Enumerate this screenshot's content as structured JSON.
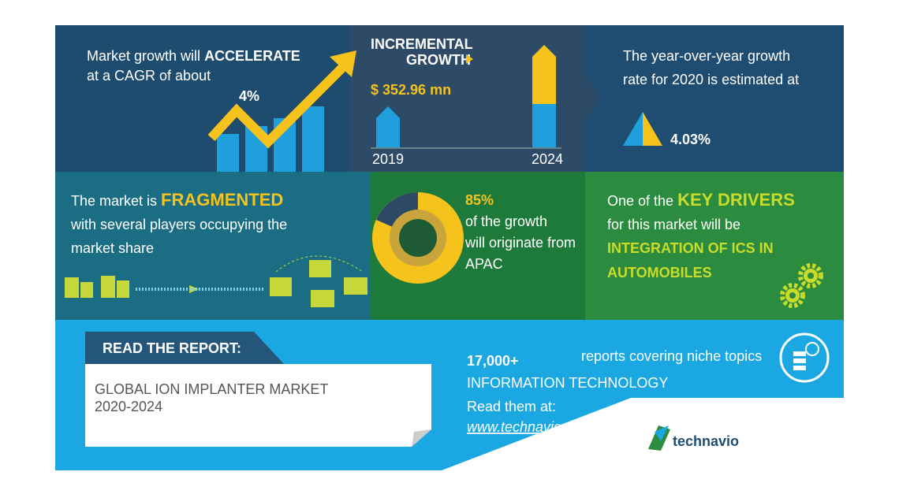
{
  "growth": {
    "prefix": "Market growth will",
    "emphasis": "ACCELERATE",
    "line2": "at a CAGR of about",
    "cagr": "4%"
  },
  "incremental": {
    "title1": "INCREMENTAL",
    "title2": "GROWTH",
    "amount": "$ 352.96  mn",
    "start_year": "2019",
    "end_year": "2024"
  },
  "yoy": {
    "line1": "The year-over-year growth",
    "line2": "rate for 2020 is estimated at",
    "rate": "4.03%"
  },
  "fragmented": {
    "prefix": "The market is",
    "emphasis": "FRAGMENTED",
    "line2": "with several players occupying the",
    "line3": "market share"
  },
  "region": {
    "share": "85%",
    "line1": "of the growth",
    "line2": "will originate from",
    "line3": "APAC"
  },
  "drivers": {
    "prefix": "One of the",
    "emphasis": "KEY DRIVERS",
    "line2": "for this market will be",
    "driver1": "INTEGRATION OF ICS IN",
    "driver2": "AUTOMOBILES"
  },
  "report": {
    "tab": "READ THE REPORT:",
    "title": "GLOBAL ION IMPLANTER MARKET",
    "period": "2020-2024",
    "count": "17,000+",
    "count_text": "reports covering niche topics",
    "category": "INFORMATION TECHNOLOGY",
    "read": "Read them at:",
    "url": "www.technavio.com",
    "brand": "technavio"
  }
}
